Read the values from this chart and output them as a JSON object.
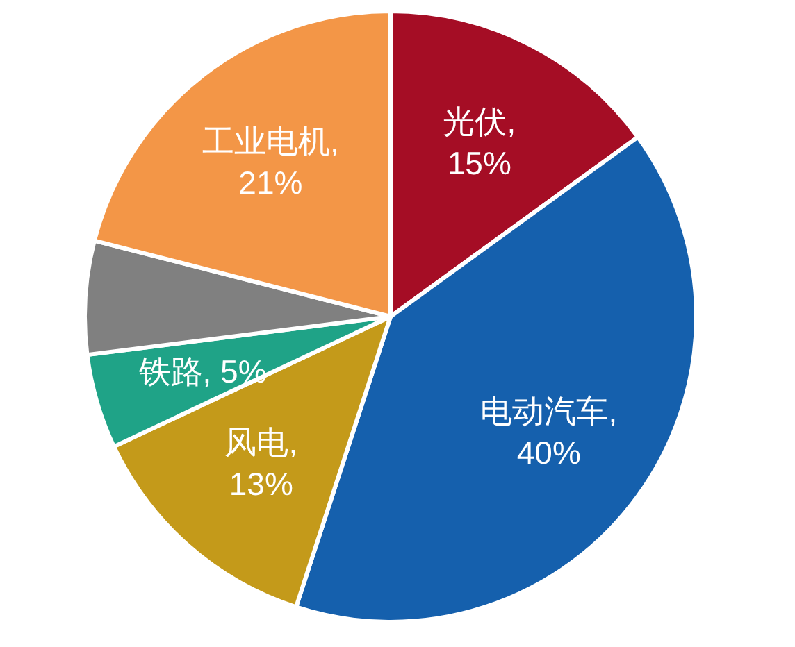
{
  "chart_data": {
    "type": "pie",
    "categories": [
      "光伏",
      "电动汽车",
      "风电",
      "铁路",
      null,
      "工业电机"
    ],
    "values": [
      15,
      40,
      13,
      5,
      6,
      21
    ],
    "colors": [
      "#a50d25",
      "#1560ad",
      "#c49a1a",
      "#1fa387",
      "#808080",
      "#f39647"
    ],
    "value_labels": [
      ",\n15%",
      ",\n40%",
      ",\n13%",
      ", 5%",
      null,
      ",\n21%"
    ]
  }
}
